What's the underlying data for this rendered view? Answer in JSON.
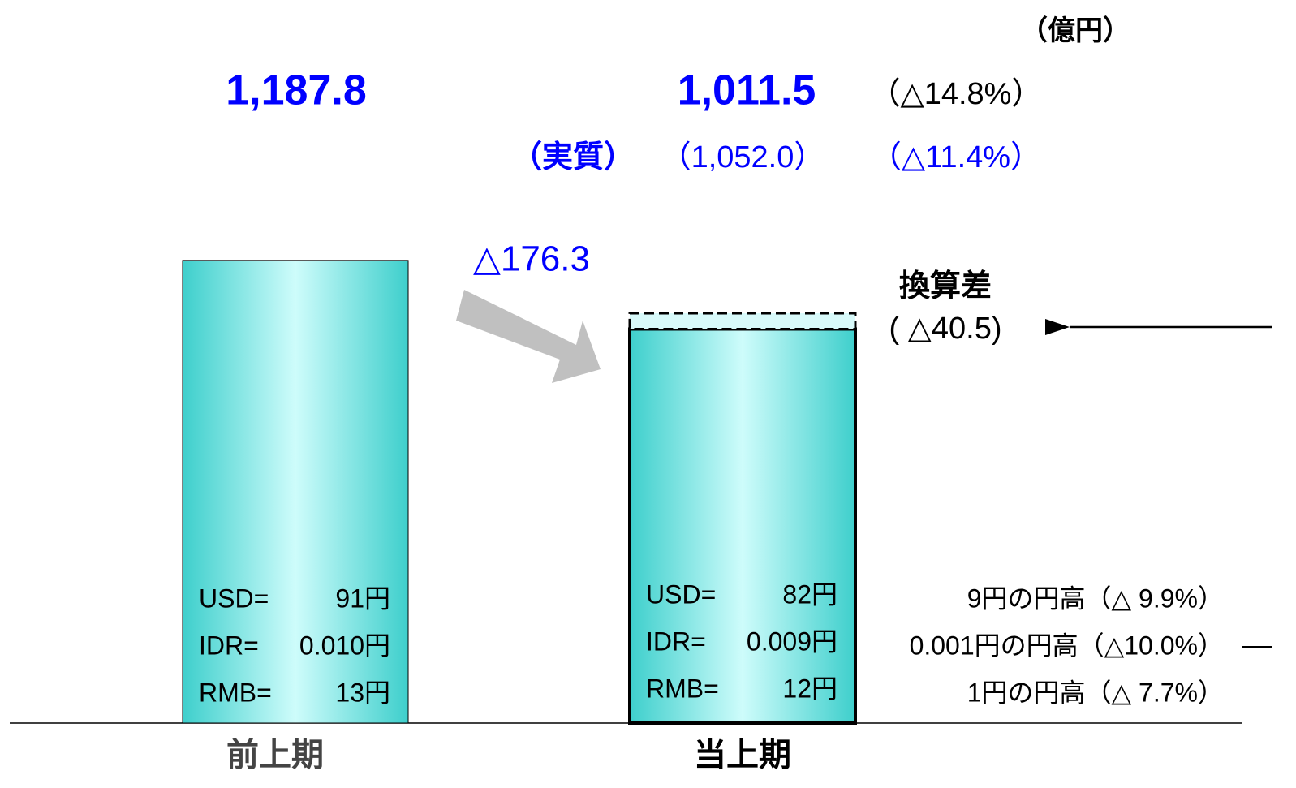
{
  "chart_data": {
    "type": "bar",
    "unit": "（億円）",
    "categories": [
      "前上期",
      "当上期"
    ],
    "values": [
      1187.8,
      1011.5
    ],
    "value_labels": [
      "1,187.8",
      "1,011.5"
    ],
    "change": {
      "value": -176.3,
      "label": "△176.3",
      "pct": "（△14.8%）"
    },
    "real": {
      "name": "（実質）",
      "value": 1052.0,
      "label": "（1,052.0）",
      "pct": "（△11.4%）"
    },
    "conversion": {
      "name": "換算差",
      "value": -40.5,
      "label": "( △40.5)"
    },
    "rates": [
      [
        [
          "USD=",
          "91円"
        ],
        [
          "IDR=",
          "0.010円"
        ],
        [
          "RMB=",
          "13円"
        ]
      ],
      [
        [
          "USD=",
          "82円"
        ],
        [
          "IDR=",
          "0.009円"
        ],
        [
          "RMB=",
          "12円"
        ]
      ]
    ],
    "rate_notes": [
      "9円の円高（△ 9.9%）",
      "0.001円の円高（△10.0%）",
      "1円の円高（△ 7.7%）"
    ]
  }
}
